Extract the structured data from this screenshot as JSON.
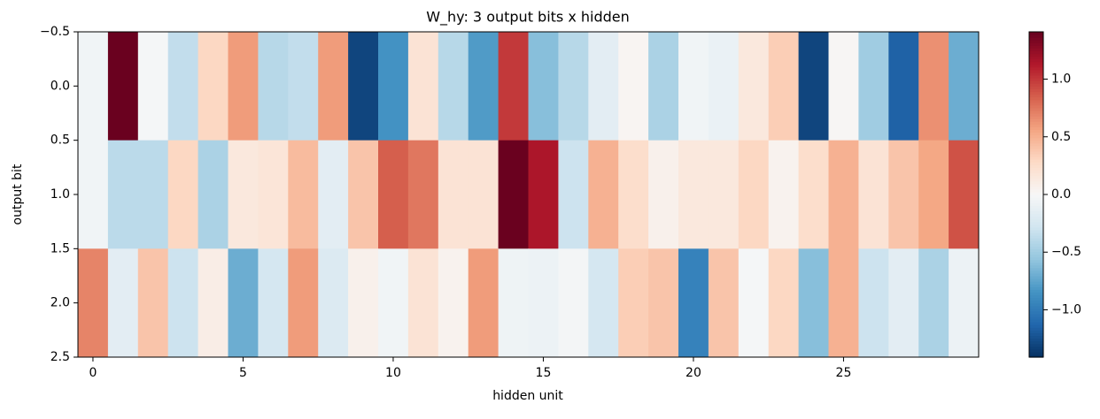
{
  "chart_data": {
    "type": "heatmap",
    "title": "W_hy: 3 output bits x hidden",
    "xlabel": "hidden unit",
    "ylabel": "output bit",
    "colormap": "RdBu_r",
    "z": [
      [
        -0.05,
        1.4,
        -0.02,
        -0.35,
        0.3,
        0.6,
        -0.4,
        -0.35,
        0.6,
        -1.3,
        -0.85,
        0.2,
        -0.4,
        -0.8,
        1.0,
        -0.6,
        -0.4,
        -0.15,
        0.03,
        -0.45,
        -0.05,
        -0.1,
        0.15,
        0.35,
        -1.3,
        0.02,
        -0.5,
        -1.15,
        0.65,
        -0.7
      ],
      [
        -0.05,
        -0.38,
        -0.38,
        0.3,
        -0.45,
        0.15,
        0.18,
        0.45,
        -0.15,
        0.4,
        0.85,
        0.75,
        0.2,
        0.2,
        1.4,
        1.15,
        -0.3,
        0.5,
        0.25,
        0.07,
        0.15,
        0.15,
        0.3,
        0.05,
        0.25,
        0.5,
        0.2,
        0.4,
        0.55,
        0.9
      ],
      [
        0.7,
        -0.15,
        0.4,
        -0.3,
        0.1,
        -0.7,
        -0.25,
        0.6,
        -0.2,
        0.07,
        -0.05,
        0.2,
        0.05,
        0.6,
        -0.07,
        -0.08,
        -0.03,
        -0.25,
        0.35,
        0.4,
        -0.95,
        0.4,
        -0.02,
        0.3,
        -0.6,
        0.5,
        -0.3,
        -0.15,
        -0.45,
        -0.08
      ]
    ],
    "xlim": [
      -0.5,
      29.5
    ],
    "xticks": [
      0,
      5,
      10,
      15,
      20,
      25
    ],
    "ylim": [
      2.5,
      -0.5
    ],
    "yticks": [
      {
        "value": -0.5,
        "label": "−0.5"
      },
      {
        "value": 0,
        "label": "0.0"
      },
      {
        "value": 0.5,
        "label": "0.5"
      },
      {
        "value": 1,
        "label": "1.0"
      },
      {
        "value": 1.5,
        "label": "1.5"
      },
      {
        "value": 2,
        "label": "2.0"
      },
      {
        "value": 2.5,
        "label": "2.5"
      }
    ],
    "clim": [
      -1.41,
      1.41
    ],
    "cticks": [
      {
        "value": -1,
        "label": "−1.0"
      },
      {
        "value": -0.5,
        "label": "−0.5"
      },
      {
        "value": 0,
        "label": "0.0"
      },
      {
        "value": 0.5,
        "label": "0.5"
      },
      {
        "value": 1,
        "label": "1.0"
      }
    ]
  }
}
